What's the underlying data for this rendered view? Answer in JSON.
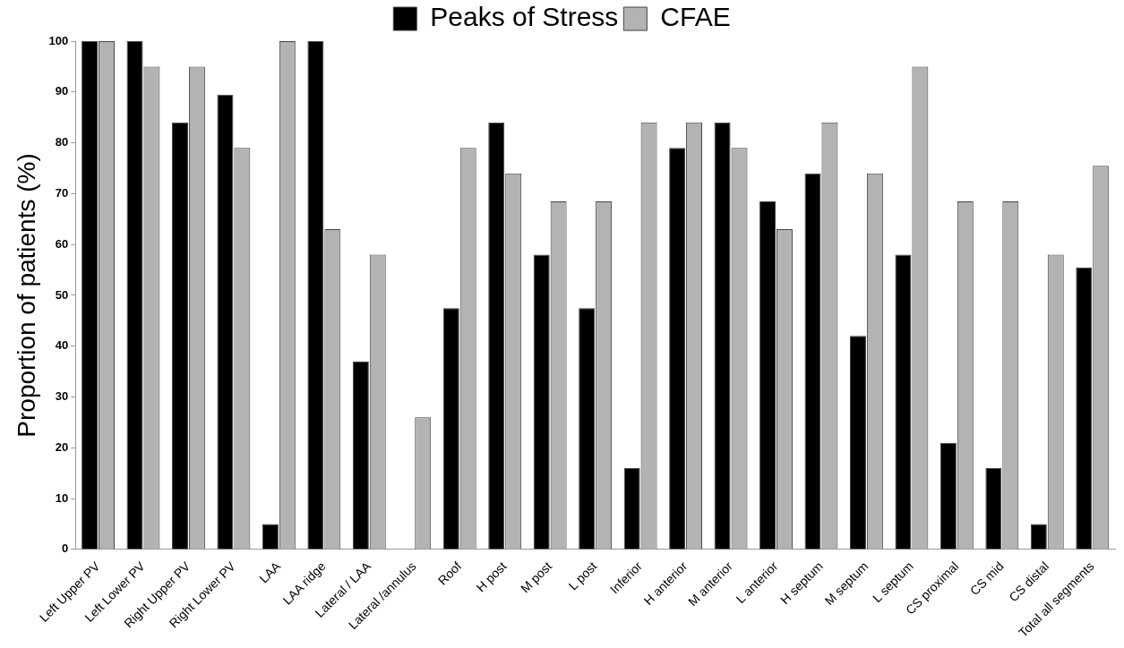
{
  "chart_data": {
    "type": "bar",
    "ylabel": "Proportion of patients (%)",
    "categories": [
      "Left Upper PV",
      "Left Lower PV",
      "Right Upper PV",
      "Right Lower PV",
      "LAA",
      "LAA ridge",
      "Lateral / LAA",
      "Lateral /annulus",
      "Roof",
      "H post",
      "M post",
      "L post",
      "Inferior",
      "H anterior",
      "M anterior",
      "L anterior",
      "H septum",
      "M septum",
      "L septum",
      "CS proximal",
      "CS mid",
      "CS distal",
      "Total all segments"
    ],
    "series": [
      {
        "name": "Peaks of Stress",
        "color": "#000000",
        "values": [
          100,
          100,
          84,
          89.5,
          5,
          100,
          37,
          0,
          47.5,
          84,
          58,
          47.5,
          16,
          79,
          84,
          68.5,
          74,
          42,
          58,
          21,
          16,
          5,
          55.5
        ]
      },
      {
        "name": "CFAE",
        "color": "#b3b3b3",
        "values": [
          100,
          95,
          95,
          79,
          100,
          63,
          58,
          26,
          79,
          74,
          68.5,
          68.5,
          84,
          84,
          79,
          63,
          84,
          74,
          95,
          68.5,
          68.5,
          58,
          75.5
        ]
      }
    ],
    "ylim": [
      0,
      100
    ],
    "yticks": [
      0,
      10,
      20,
      30,
      40,
      50,
      60,
      70,
      80,
      90,
      100
    ],
    "grid": false,
    "legend": "top"
  }
}
